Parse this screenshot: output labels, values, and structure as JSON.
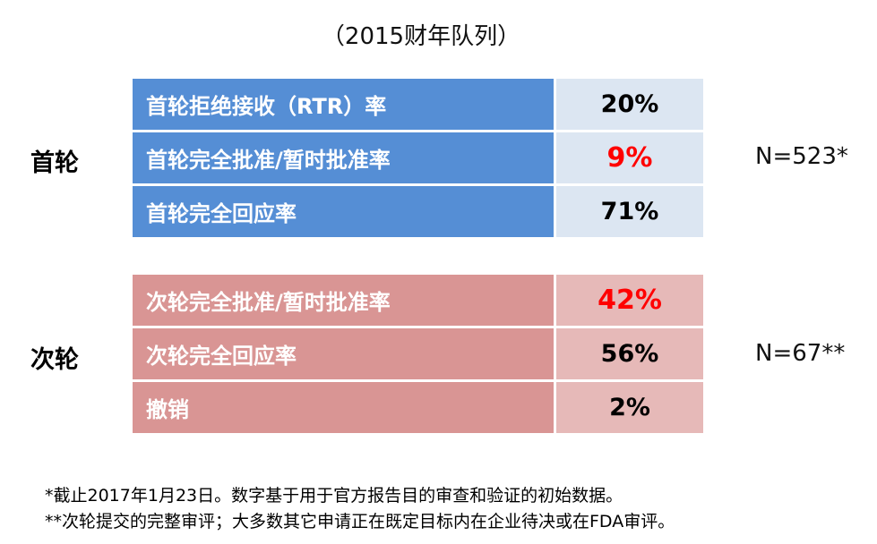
{
  "subtitle": "（2015财年队列）",
  "groups": [
    {
      "label": "首轮",
      "n": "N=523*",
      "rows": [
        {
          "label": "首轮拒绝接收（RTR）率",
          "value": "20%"
        },
        {
          "label": "首轮完全批准/暂时批准率",
          "value": "9%",
          "highlight_color": "#ff0000"
        },
        {
          "label": "首轮完全回应率",
          "value": "71%"
        }
      ]
    },
    {
      "label": "次轮",
      "n": "N=67**",
      "rows": [
        {
          "label": "次轮完全批准/暂时批准率",
          "value": "42%",
          "highlight_color": "#ff0000"
        },
        {
          "label": "次轮完全回应率",
          "value": "56%"
        },
        {
          "label": "撤销",
          "value": "2%"
        }
      ]
    }
  ],
  "colors": {
    "first_label_bg": "#558ed5",
    "first_value_bg": "#dce6f2",
    "second_label_bg": "#d99594",
    "second_value_bg": "#e6b9b8"
  },
  "footnotes": [
    "*截止2017年1月23日。数字基于用于官方报告目的审查和验证的初始数据。",
    "**次轮提交的完整审评；大多数其它申请正在既定目标内在企业待决或在FDA审评。"
  ]
}
